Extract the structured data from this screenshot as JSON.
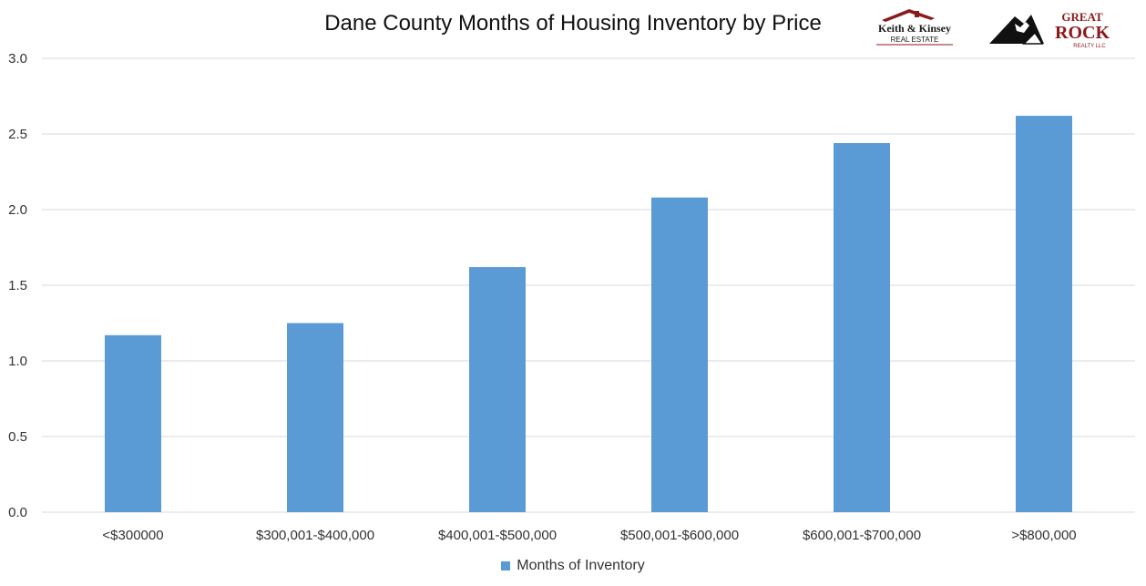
{
  "chart_data": {
    "type": "bar",
    "title": "Dane County Months of Housing Inventory by Price",
    "categories": [
      "<$300000",
      "$300,001-$400,000",
      "$400,001-$500,000",
      "$500,001-$600,000",
      "$600,001-$700,000",
      ">$800,000"
    ],
    "series": [
      {
        "name": "Months of Inventory",
        "values": [
          1.17,
          1.25,
          1.62,
          2.08,
          2.44,
          2.62
        ],
        "color": "#5B9BD5"
      }
    ],
    "ylim": [
      0,
      3.0
    ],
    "yticks": [
      "0.0",
      "0.5",
      "1.0",
      "1.5",
      "2.0",
      "2.5",
      "3.0"
    ],
    "grid": true,
    "legend_position": "bottom"
  },
  "logos": {
    "keith_kinsey": {
      "line1": "Keith & Kinsey",
      "line2": "REAL ESTATE"
    },
    "great_rock": {
      "line1": "GREAT",
      "line2": "ROCK",
      "line3": "REALTY LLC"
    }
  }
}
